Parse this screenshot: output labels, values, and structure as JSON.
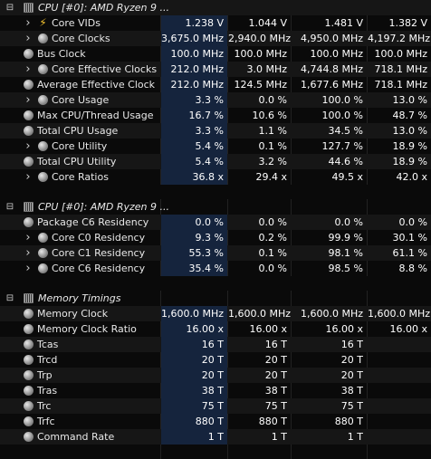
{
  "rows": [
    {
      "type": "header",
      "tog": "-",
      "icon": "chip",
      "label": "CPU [#0]: AMD Ryzen 9 ...",
      "values": [
        "",
        "",
        "",
        ""
      ]
    },
    {
      "type": "sensor",
      "chev": true,
      "icon": "bolt",
      "label": "Core VIDs",
      "values": [
        "1.238 V",
        "1.044 V",
        "1.481 V",
        "1.382 V"
      ]
    },
    {
      "type": "sensor",
      "chev": true,
      "icon": "circle",
      "label": "Core Clocks",
      "values": [
        "3,675.0 MHz",
        "2,940.0 MHz",
        "4,950.0 MHz",
        "4,197.2 MHz"
      ]
    },
    {
      "type": "sensor",
      "chev": false,
      "icon": "circle",
      "label": "Bus Clock",
      "values": [
        "100.0 MHz",
        "100.0 MHz",
        "100.0 MHz",
        "100.0 MHz"
      ]
    },
    {
      "type": "sensor",
      "chev": true,
      "icon": "circle",
      "label": "Core Effective Clocks",
      "values": [
        "212.0 MHz",
        "3.0 MHz",
        "4,744.8 MHz",
        "718.1 MHz"
      ]
    },
    {
      "type": "sensor",
      "chev": false,
      "icon": "circle",
      "label": "Average Effective Clock",
      "values": [
        "212.0 MHz",
        "124.5 MHz",
        "1,677.6 MHz",
        "718.1 MHz"
      ]
    },
    {
      "type": "sensor",
      "chev": true,
      "icon": "circle",
      "label": "Core Usage",
      "values": [
        "3.3 %",
        "0.0 %",
        "100.0 %",
        "13.0 %"
      ]
    },
    {
      "type": "sensor",
      "chev": false,
      "icon": "circle",
      "label": "Max CPU/Thread Usage",
      "values": [
        "16.7 %",
        "10.6 %",
        "100.0 %",
        "48.7 %"
      ]
    },
    {
      "type": "sensor",
      "chev": false,
      "icon": "circle",
      "label": "Total CPU Usage",
      "values": [
        "3.3 %",
        "1.1 %",
        "34.5 %",
        "13.0 %"
      ]
    },
    {
      "type": "sensor",
      "chev": true,
      "icon": "circle",
      "label": "Core Utility",
      "values": [
        "5.4 %",
        "0.1 %",
        "127.7 %",
        "18.9 %"
      ]
    },
    {
      "type": "sensor",
      "chev": false,
      "icon": "circle",
      "label": "Total CPU Utility",
      "values": [
        "5.4 %",
        "3.2 %",
        "44.6 %",
        "18.9 %"
      ]
    },
    {
      "type": "sensor",
      "chev": true,
      "icon": "circle",
      "label": "Core Ratios",
      "values": [
        "36.8 x",
        "29.4 x",
        "49.5 x",
        "42.0 x"
      ]
    },
    {
      "type": "blank"
    },
    {
      "type": "header",
      "tog": "-",
      "icon": "chip",
      "label": "CPU [#0]: AMD Ryzen 9 ...",
      "values": [
        "",
        "",
        "",
        ""
      ]
    },
    {
      "type": "sensor",
      "chev": false,
      "icon": "circle",
      "label": "Package C6 Residency",
      "values": [
        "0.0 %",
        "0.0 %",
        "0.0 %",
        "0.0 %"
      ]
    },
    {
      "type": "sensor",
      "chev": true,
      "icon": "circle",
      "label": "Core C0 Residency",
      "values": [
        "9.3 %",
        "0.2 %",
        "99.9 %",
        "30.1 %"
      ]
    },
    {
      "type": "sensor",
      "chev": true,
      "icon": "circle",
      "label": "Core C1 Residency",
      "values": [
        "55.3 %",
        "0.1 %",
        "98.1 %",
        "61.1 %"
      ]
    },
    {
      "type": "sensor",
      "chev": true,
      "icon": "circle",
      "label": "Core C6 Residency",
      "values": [
        "35.4 %",
        "0.0 %",
        "98.5 %",
        "8.8 %"
      ]
    },
    {
      "type": "blank"
    },
    {
      "type": "header",
      "tog": "-",
      "icon": "chip",
      "label": "Memory Timings",
      "values": [
        "",
        "",
        "",
        ""
      ]
    },
    {
      "type": "sensor",
      "chev": false,
      "icon": "circle",
      "label": "Memory Clock",
      "values": [
        "1,600.0 MHz",
        "1,600.0 MHz",
        "1,600.0 MHz",
        "1,600.0 MHz"
      ]
    },
    {
      "type": "sensor",
      "chev": false,
      "icon": "circle",
      "label": "Memory Clock Ratio",
      "values": [
        "16.00 x",
        "16.00 x",
        "16.00 x",
        "16.00 x"
      ]
    },
    {
      "type": "sensor",
      "chev": false,
      "icon": "circle",
      "label": "Tcas",
      "values": [
        "16 T",
        "16 T",
        "16 T",
        ""
      ]
    },
    {
      "type": "sensor",
      "chev": false,
      "icon": "circle",
      "label": "Trcd",
      "values": [
        "20 T",
        "20 T",
        "20 T",
        ""
      ]
    },
    {
      "type": "sensor",
      "chev": false,
      "icon": "circle",
      "label": "Trp",
      "values": [
        "20 T",
        "20 T",
        "20 T",
        ""
      ]
    },
    {
      "type": "sensor",
      "chev": false,
      "icon": "circle",
      "label": "Tras",
      "values": [
        "38 T",
        "38 T",
        "38 T",
        ""
      ]
    },
    {
      "type": "sensor",
      "chev": false,
      "icon": "circle",
      "label": "Trc",
      "values": [
        "75 T",
        "75 T",
        "75 T",
        ""
      ]
    },
    {
      "type": "sensor",
      "chev": false,
      "icon": "circle",
      "label": "Trfc",
      "values": [
        "880 T",
        "880 T",
        "880 T",
        ""
      ]
    },
    {
      "type": "sensor",
      "chev": false,
      "icon": "circle",
      "label": "Command Rate",
      "values": [
        "1 T",
        "1 T",
        "1 T",
        ""
      ]
    }
  ]
}
